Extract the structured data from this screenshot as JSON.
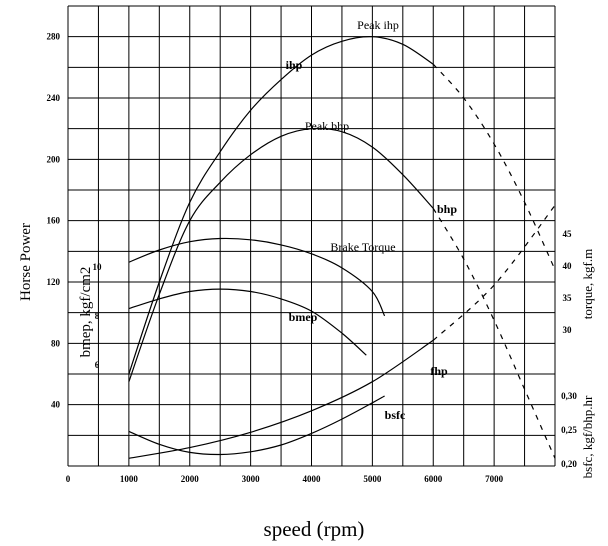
{
  "chart_data": {
    "type": "line",
    "xlabel": "speed (rpm)",
    "x_ticks": [
      "0",
      "1000",
      "2000",
      "3000",
      "4000",
      "5000",
      "6000",
      "7000"
    ],
    "xlim": [
      0,
      8000
    ],
    "axes": {
      "horse_power": {
        "label": "Horse Power",
        "ticks": [
          "40",
          "80",
          "120",
          "160",
          "200",
          "240",
          "280"
        ],
        "ylim": [
          0,
          300
        ]
      },
      "bmep": {
        "label": "bmep, kgf/cm2",
        "ticks": [
          "6",
          "8",
          "10"
        ]
      },
      "torque": {
        "label": "torque, kgf.m",
        "ticks": [
          "30",
          "35",
          "40",
          "45"
        ]
      },
      "bsfc": {
        "label": "bsfc, kgf/bhp.hr",
        "ticks": [
          "0,20",
          "0,25",
          "0,30"
        ]
      }
    },
    "series": [
      {
        "name": "ihp",
        "axis": "horse_power",
        "x": [
          1000,
          1500,
          2000,
          2500,
          3000,
          3500,
          4000,
          4500,
          5000,
          5500,
          6000,
          6500,
          7000,
          7500,
          8000
        ],
        "y": [
          60,
          120,
          172,
          205,
          232,
          252,
          268,
          277,
          280,
          275,
          262,
          240,
          210,
          172,
          128
        ],
        "dashed_from": 6000
      },
      {
        "name": "bhp",
        "axis": "horse_power",
        "x": [
          1000,
          1500,
          2000,
          2500,
          3000,
          3500,
          4000,
          4500,
          5000,
          5500,
          6000,
          6500,
          7000,
          7500,
          8000
        ],
        "y": [
          55,
          112,
          160,
          185,
          203,
          215,
          220,
          218,
          208,
          190,
          168,
          135,
          95,
          50,
          5
        ],
        "dashed_from": 6000
      },
      {
        "name": "fhp",
        "axis": "horse_power",
        "x": [
          1000,
          2000,
          3000,
          4000,
          5000,
          6000,
          7000,
          8000
        ],
        "y": [
          5,
          12,
          22,
          36,
          55,
          82,
          118,
          170
        ],
        "dashed_from": 6000
      },
      {
        "name": "Brake Torque",
        "axis": "torque",
        "x": [
          1000,
          1500,
          2000,
          2500,
          3000,
          3500,
          4000,
          4500,
          5000,
          5200
        ],
        "y": [
          40.6,
          42.5,
          43.8,
          44.3,
          44.1,
          43.3,
          41.9,
          39.7,
          36.0,
          32.2
        ]
      },
      {
        "name": "bmep",
        "axis": "bmep",
        "x": [
          1000,
          1500,
          2000,
          2500,
          3000,
          3500,
          4000,
          4500,
          4900
        ],
        "y": [
          8.3,
          8.7,
          9.0,
          9.1,
          9.0,
          8.7,
          8.2,
          7.3,
          6.4
        ]
      },
      {
        "name": "bsfc",
        "axis": "bsfc",
        "x": [
          1000,
          1500,
          2000,
          2500,
          3000,
          3500,
          4000,
          4500,
          5000,
          5200
        ],
        "y": [
          0.248,
          0.229,
          0.217,
          0.214,
          0.218,
          0.228,
          0.245,
          0.266,
          0.29,
          0.3
        ]
      }
    ],
    "annotations": [
      {
        "text": "Peak ihp",
        "x": 5000,
        "y": 280
      },
      {
        "text": "Peak bhp",
        "x": 4400,
        "y": 220
      }
    ],
    "grid": true
  }
}
